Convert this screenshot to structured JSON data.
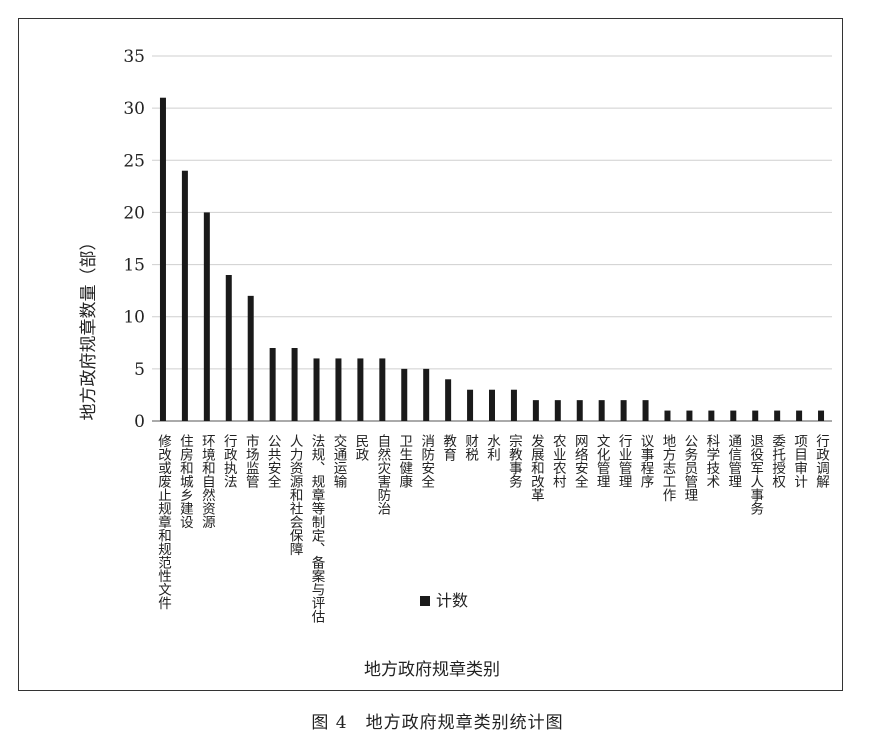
{
  "chart_data": {
    "type": "bar",
    "xlabel": "地方政府规章类别",
    "ylabel": "地方政府规章数量（部）",
    "ylim": [
      0,
      35
    ],
    "yticks": [
      0,
      5,
      10,
      15,
      20,
      25,
      30,
      35
    ],
    "grid": "horizontal",
    "legend_position": "bottom-center",
    "bar_color": "#1a1a1a",
    "series": [
      {
        "name": "计数",
        "values": [
          31,
          24,
          20,
          14,
          12,
          7,
          7,
          6,
          6,
          6,
          6,
          5,
          5,
          4,
          3,
          3,
          3,
          2,
          2,
          2,
          2,
          2,
          2,
          1,
          1,
          1,
          1,
          1,
          1,
          1,
          1
        ]
      }
    ],
    "categories": [
      "修改或废止规章和规范性文件",
      "住房和城乡建设",
      "环境和自然资源",
      "行政执法",
      "市场监管",
      "公共安全",
      "人力资源和社会保障",
      "法规、规章等制定、备案与评估",
      "交通运输",
      "民政",
      "自然灾害防治",
      "卫生健康",
      "消防安全",
      "教育",
      "财税",
      "水利",
      "宗教事务",
      "发展和改革",
      "农业农村",
      "网络安全",
      "文化管理",
      "行业管理",
      "议事程序",
      "地方志工作",
      "公务员管理",
      "科学技术",
      "通信管理",
      "退役军人事务",
      "委托授权",
      "项目审计",
      "行政调解"
    ]
  },
  "caption": "图 4　地方政府规章类别统计图"
}
